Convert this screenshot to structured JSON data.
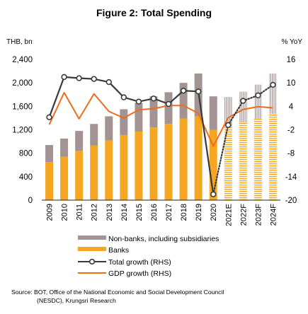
{
  "chart_data": {
    "type": "bar",
    "title": "Figure 2: Total Spending",
    "y_left_unit": "THB, bn",
    "y_right_unit": "% YoY",
    "ylim_left": [
      0,
      2400
    ],
    "ylim_right": [
      -20,
      16
    ],
    "y_left_ticks": [
      "0",
      "400",
      "800",
      "1,200",
      "1,600",
      "2,000",
      "2,400"
    ],
    "y_right_ticks": [
      "-20",
      "-14",
      "-8",
      "-2",
      "4",
      "10",
      "16"
    ],
    "categories": [
      "2009",
      "2010",
      "2011",
      "2012",
      "2013",
      "2014",
      "2015",
      "2016",
      "2017",
      "2018",
      "2019",
      "2020",
      "2021E",
      "2022F",
      "2023F",
      "2024F"
    ],
    "forecast_from_index": 12,
    "series": [
      {
        "name": "Banks",
        "type": "bar-stack",
        "axis": "left",
        "color": "#f5a623",
        "values": [
          650,
          740,
          840,
          930,
          1020,
          1110,
          1170,
          1240,
          1300,
          1390,
          1430,
          1200,
          1250,
          1320,
          1390,
          1470
        ]
      },
      {
        "name": "Non-banks, including subsidiaries",
        "type": "bar-stack",
        "axis": "left",
        "color": "#a39393",
        "values": [
          290,
          310,
          340,
          370,
          410,
          440,
          490,
          530,
          540,
          610,
          730,
          570,
          510,
          530,
          580,
          690
        ]
      },
      {
        "name": "Total growth (RHS)",
        "type": "line",
        "axis": "right",
        "color": "#3a3a3a",
        "marker": "circle",
        "values": [
          1.2,
          11.5,
          11.2,
          11.0,
          10.2,
          6.3,
          5.2,
          6.0,
          4.6,
          8.0,
          7.8,
          -18.5,
          -0.8,
          5.4,
          6.8,
          9.5
        ]
      },
      {
        "name": "GDP growth (RHS)",
        "type": "line",
        "axis": "right",
        "color": "#ef6c1a",
        "values": [
          -0.7,
          7.5,
          0.8,
          7.2,
          2.7,
          1.0,
          3.1,
          3.4,
          4.2,
          4.2,
          2.2,
          -6.2,
          1.1,
          3.2,
          3.9,
          3.6
        ]
      }
    ],
    "legend": {
      "position": "bottom",
      "entries": [
        "Non-banks, including subsidiaries",
        "Banks",
        "Total growth (RHS)",
        "GDP growth (RHS)"
      ]
    },
    "grid": false
  },
  "source_text": [
    "Source: BOT, Office of the National Economic and Social Development Council",
    "(NESDC), Krungsri Research"
  ],
  "colors": {
    "banks": "#f5a623",
    "nonbanks": "#a39393",
    "total_line": "#3a3a3a",
    "gdp_line": "#ef6c1a"
  }
}
